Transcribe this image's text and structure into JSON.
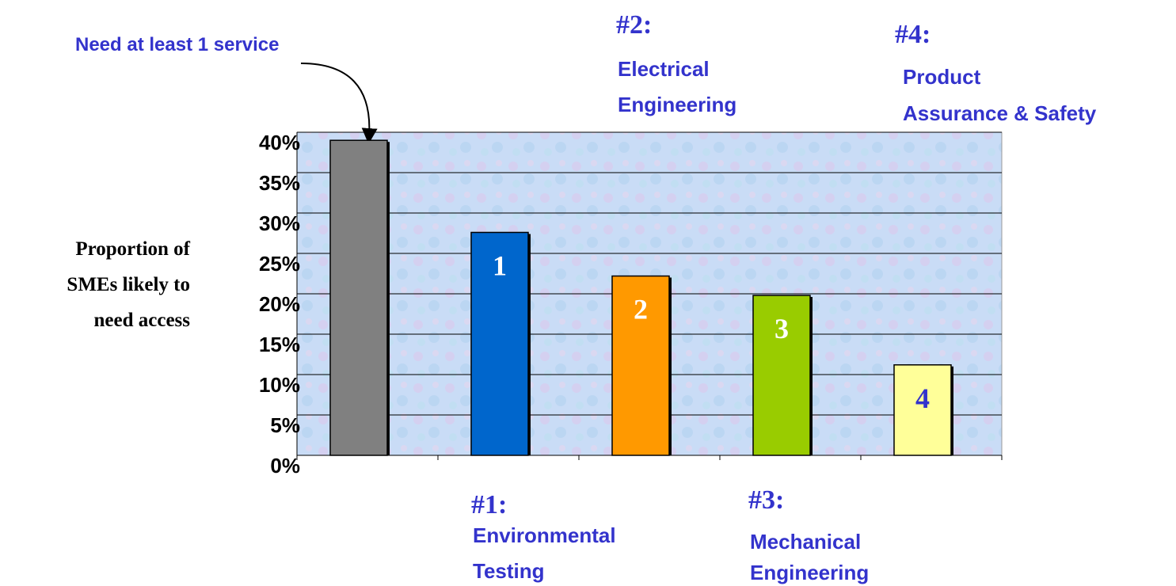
{
  "chart_data": {
    "type": "bar",
    "ylabel": [
      "Proportion of",
      "SMEs likely to",
      "need access"
    ],
    "categories": [
      null,
      null,
      null,
      null,
      null
    ],
    "values": [
      39,
      27.6,
      22.2,
      19.8,
      11.2
    ],
    "colors": [
      "#808080",
      "#0066cc",
      "#ff9900",
      "#99cc00",
      "#ffff99"
    ],
    "bar_labels": [
      null,
      "1",
      "2",
      "3",
      "4"
    ],
    "ylim": [
      0,
      40
    ],
    "yticks": [
      {
        "value": 0,
        "label": "0%"
      },
      {
        "value": 5,
        "label": "5%"
      },
      {
        "value": 10,
        "label": "10%"
      },
      {
        "value": 15,
        "label": "15%"
      },
      {
        "value": 20,
        "label": "20%"
      },
      {
        "value": 25,
        "label": "25%"
      },
      {
        "value": 30,
        "label": "30%"
      },
      {
        "value": 35,
        "label": "35%"
      },
      {
        "value": 40,
        "label": "40%"
      }
    ],
    "grid": true,
    "annotations": [
      {
        "text": "Need at least 1 service"
      },
      {
        "rank": "#1:",
        "lines": [
          "Environmental",
          "Testing"
        ]
      },
      {
        "rank": "#2:",
        "lines": [
          "Electrical",
          "Engineering"
        ]
      },
      {
        "rank": "#3:",
        "lines": [
          "Mechanical",
          "Engineering"
        ]
      },
      {
        "rank": "#4:",
        "lines": [
          "Product",
          "Assurance & Safety"
        ]
      }
    ]
  }
}
